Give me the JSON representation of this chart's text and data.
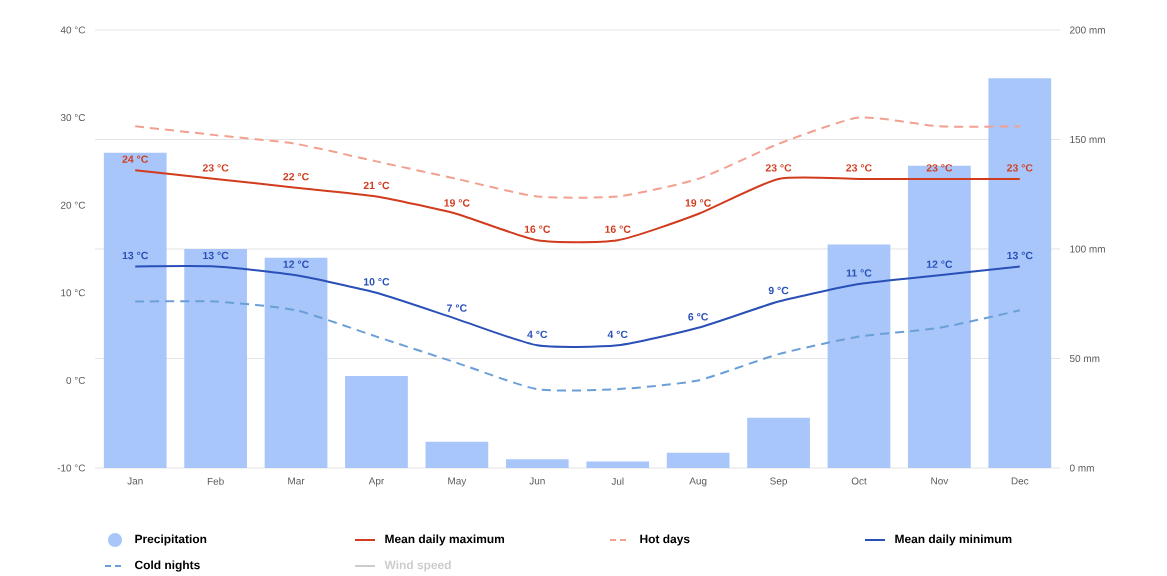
{
  "chart_data": {
    "type": "line",
    "categories": [
      "Jan",
      "Feb",
      "Mar",
      "Apr",
      "May",
      "Jun",
      "Jul",
      "Aug",
      "Sep",
      "Oct",
      "Nov",
      "Dec"
    ],
    "ylim": [
      -10,
      40
    ],
    "yticks": [
      {
        "value": -10,
        "label": "-10 °C"
      },
      {
        "value": 0,
        "label": "0 °C"
      },
      {
        "value": 10,
        "label": "10 °C"
      },
      {
        "value": 20,
        "label": "20 °C"
      },
      {
        "value": 30,
        "label": "30 °C"
      },
      {
        "value": 40,
        "label": "40 °C"
      }
    ],
    "y2lim": [
      0,
      200
    ],
    "y2ticks": [
      {
        "value": 0,
        "label": "0 mm"
      },
      {
        "value": 50,
        "label": "50 mm"
      },
      {
        "value": 100,
        "label": "100 mm"
      },
      {
        "value": 150,
        "label": "150 mm"
      },
      {
        "value": 200,
        "label": "200 mm"
      }
    ],
    "grid": "y",
    "legend": "bottom",
    "series": [
      {
        "name": "Precipitation",
        "type": "bar",
        "axis": "y2",
        "color": "#a8c6fa",
        "values": [
          144,
          100,
          96,
          42,
          12,
          4,
          3,
          7,
          23,
          102,
          138,
          178
        ]
      },
      {
        "name": "Mean daily maximum",
        "color": "#d23c1e",
        "line_style": "solid",
        "values": [
          24,
          23,
          22,
          21,
          19,
          16,
          16,
          19,
          23,
          23,
          23,
          23
        ],
        "value_labels": [
          "24 °C",
          "23 °C",
          "22 °C",
          "21 °C",
          "19 °C",
          "16 °C",
          "16 °C",
          "19 °C",
          "23 °C",
          "23 °C",
          "23 °C",
          "23 °C"
        ]
      },
      {
        "name": "Hot days",
        "color": "#f2a090",
        "line_style": "dashed",
        "values": [
          29,
          28,
          27,
          25,
          23,
          21,
          21,
          23,
          27,
          30,
          29,
          29
        ]
      },
      {
        "name": "Mean daily minimum",
        "color": "#2a50b8",
        "line_style": "solid",
        "values": [
          13,
          13,
          12,
          10,
          7,
          4,
          4,
          6,
          9,
          11,
          12,
          13
        ],
        "value_labels": [
          "13 °C",
          "13 °C",
          "12 °C",
          "10 °C",
          "7 °C",
          "4 °C",
          "4 °C",
          "6 °C",
          "9 °C",
          "11 °C",
          "12 °C",
          "13 °C"
        ]
      },
      {
        "name": "Cold nights",
        "color": "#6a9fd8",
        "line_style": "dashed",
        "values": [
          9,
          9,
          8,
          5,
          2,
          -1,
          -1,
          0,
          3,
          5,
          6,
          8
        ]
      },
      {
        "name": "Wind speed",
        "color": "#cccccc",
        "line_style": "solid",
        "values": [
          null,
          null,
          null,
          null,
          null,
          null,
          null,
          null,
          null,
          null,
          null,
          null
        ]
      }
    ]
  }
}
